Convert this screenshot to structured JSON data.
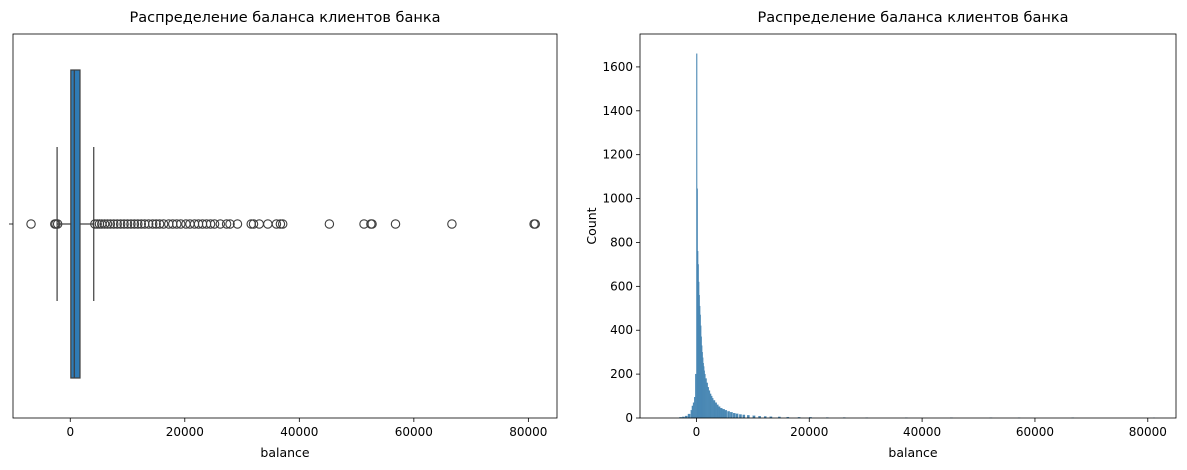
{
  "chart_data": [
    {
      "type": "box",
      "title": "Распределение баланса клиентов банка",
      "xlabel": "balance",
      "ylabel": "",
      "xlim": [
        -10000,
        85000
      ],
      "xticks": [
        "0",
        "20000",
        "40000",
        "60000",
        "80000"
      ],
      "xtick_values": [
        0,
        20000,
        40000,
        60000,
        80000
      ],
      "color": "#2f7bb6",
      "stats": {
        "whisker_low": -2300,
        "q1": 100,
        "median": 700,
        "q3": 1700,
        "whisker_high": 4100
      },
      "outliers": [
        -6850,
        -2700,
        -2500,
        -2200,
        4300,
        4700,
        5100,
        5500,
        6000,
        6500,
        7000,
        7600,
        8200,
        8800,
        9400,
        10000,
        10600,
        11200,
        11800,
        12400,
        13000,
        13700,
        14400,
        15000,
        15600,
        16300,
        17200,
        17900,
        18600,
        19300,
        20200,
        20900,
        21700,
        22400,
        23100,
        23800,
        24500,
        25200,
        26200,
        27300,
        27900,
        29200,
        31600,
        32000,
        33000,
        34500,
        36000,
        36700,
        37100,
        45250,
        51300,
        52500,
        52700,
        56800,
        66650,
        81000,
        81200
      ]
    },
    {
      "type": "histogram",
      "title": "Распределение баланса клиентов банка",
      "xlabel": "balance",
      "ylabel": "Count",
      "xlim": [
        -10000,
        85000
      ],
      "ylim": [
        0,
        1750
      ],
      "xticks": [
        "0",
        "20000",
        "40000",
        "60000",
        "80000"
      ],
      "xtick_values": [
        0,
        20000,
        40000,
        60000,
        80000
      ],
      "yticks": [
        "0",
        "200",
        "400",
        "600",
        "800",
        "1000",
        "1200",
        "1400",
        "1600"
      ],
      "ytick_values": [
        0,
        200,
        400,
        600,
        800,
        1000,
        1200,
        1400,
        1600
      ],
      "color": "#4a88b4",
      "bins": [
        [
          -3000,
          3
        ],
        [
          -2500,
          5
        ],
        [
          -2000,
          9
        ],
        [
          -1500,
          18
        ],
        [
          -1000,
          35
        ],
        [
          -800,
          55
        ],
        [
          -600,
          70
        ],
        [
          -400,
          95
        ],
        [
          -200,
          200
        ],
        [
          0,
          1660
        ],
        [
          90,
          1045
        ],
        [
          180,
          760
        ],
        [
          270,
          700
        ],
        [
          360,
          620
        ],
        [
          450,
          560
        ],
        [
          540,
          510
        ],
        [
          630,
          470
        ],
        [
          720,
          420
        ],
        [
          810,
          370
        ],
        [
          900,
          330
        ],
        [
          990,
          300
        ],
        [
          1080,
          275
        ],
        [
          1170,
          250
        ],
        [
          1260,
          235
        ],
        [
          1350,
          215
        ],
        [
          1440,
          200
        ],
        [
          1600,
          180
        ],
        [
          1800,
          160
        ],
        [
          2000,
          140
        ],
        [
          2200,
          125
        ],
        [
          2400,
          110
        ],
        [
          2600,
          100
        ],
        [
          2800,
          90
        ],
        [
          3000,
          80
        ],
        [
          3300,
          70
        ],
        [
          3600,
          60
        ],
        [
          3900,
          52
        ],
        [
          4200,
          45
        ],
        [
          4600,
          40
        ],
        [
          5000,
          35
        ],
        [
          5500,
          30
        ],
        [
          6000,
          26
        ],
        [
          6500,
          22
        ],
        [
          7000,
          19
        ],
        [
          7600,
          16
        ],
        [
          8200,
          14
        ],
        [
          9000,
          12
        ],
        [
          10000,
          10
        ],
        [
          11000,
          8
        ],
        [
          12000,
          7
        ],
        [
          13000,
          6
        ],
        [
          14500,
          5
        ],
        [
          16000,
          4
        ],
        [
          18000,
          3
        ],
        [
          20000,
          3
        ],
        [
          23000,
          2
        ],
        [
          26000,
          2
        ],
        [
          30000,
          1
        ],
        [
          37000,
          1
        ],
        [
          45000,
          1
        ],
        [
          52000,
          1
        ],
        [
          57000,
          1
        ],
        [
          66500,
          1
        ],
        [
          81000,
          1
        ]
      ]
    }
  ]
}
